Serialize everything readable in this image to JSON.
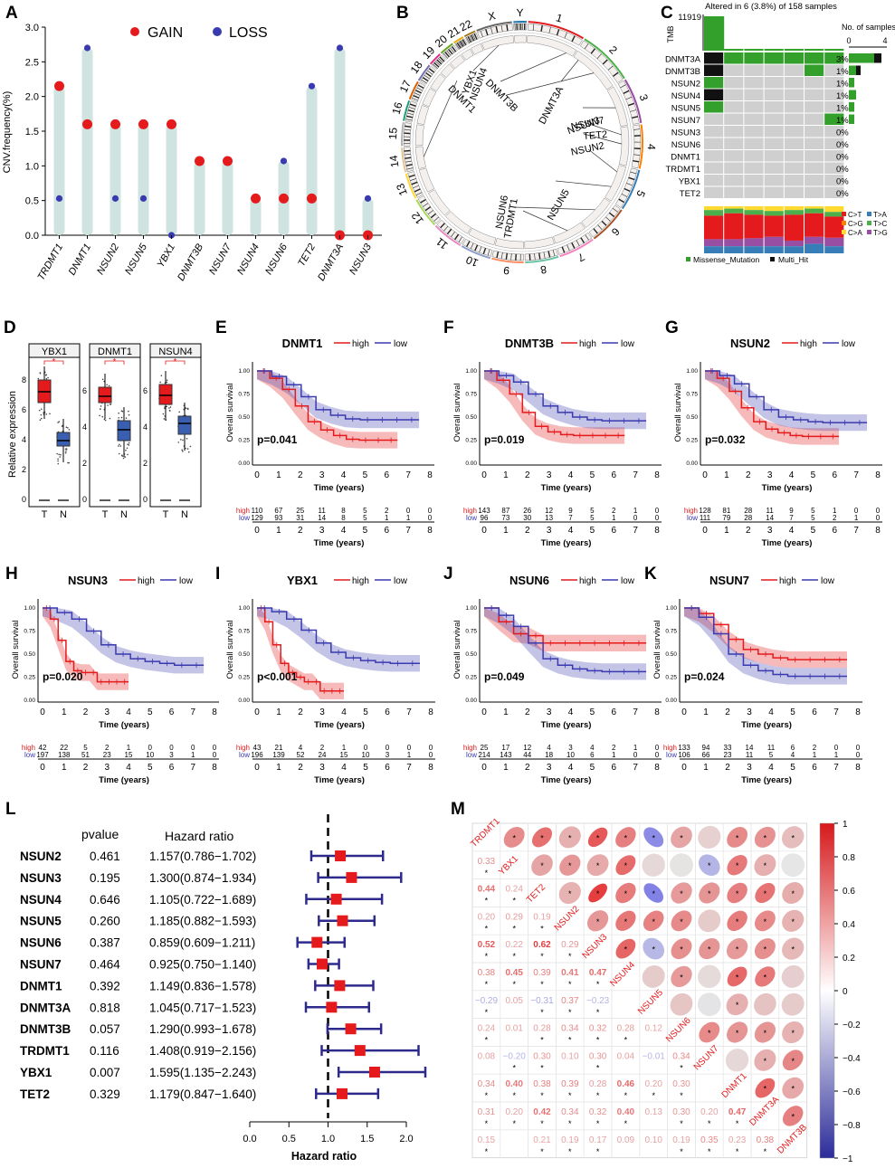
{
  "panels": {
    "A": {
      "letter": "A",
      "ylabel": "CNV.frequency(%)",
      "legend_gain": "GAIN",
      "legend_loss": "LOSS",
      "genes": [
        "TRDMT1",
        "DNMT1",
        "NSUN2",
        "NSUN5",
        "YBX1",
        "DNMT3B",
        "NSUN7",
        "NSUN4",
        "NSUN6",
        "TET2",
        "DNMT3A",
        "NSUN3"
      ],
      "gain": [
        2.15,
        1.6,
        1.6,
        1.6,
        1.6,
        1.07,
        1.07,
        0.53,
        0.53,
        0.53,
        0.0,
        0.0
      ],
      "loss": [
        0.53,
        2.7,
        0.53,
        0.53,
        0.0,
        1.07,
        1.07,
        0.53,
        1.07,
        2.15,
        2.7,
        0.53
      ],
      "yticks": [
        "0.0",
        "0.5",
        "1.0",
        "1.5",
        "2.0",
        "2.5",
        "3.0"
      ],
      "colors": {
        "gain": "#e41a1c",
        "loss": "#3a3ab0",
        "bar": "#cfe3e1"
      }
    },
    "B": {
      "letter": "B",
      "chromosomes": [
        "1",
        "2",
        "3",
        "4",
        "5",
        "6",
        "7",
        "8",
        "9",
        "10",
        "11",
        "12",
        "13",
        "14",
        "15",
        "16",
        "17",
        "18",
        "19",
        "20",
        "21",
        "22",
        "X",
        "Y"
      ],
      "gene_labels": [
        "YBX1",
        "NSUN4",
        "DNMT3A",
        "NSUN3",
        "NSUN7",
        "TET2",
        "NSUN2",
        "NSUN5",
        "NSUN6",
        "TRDMT1",
        "DNMT3B",
        "DNMT1"
      ]
    },
    "C": {
      "letter": "C",
      "title": "Altered in 6 (3.8%) of 158 samples",
      "tmb_label": "TMB",
      "tmb_max": "11919",
      "no_samples": "No. of samples",
      "axis_ticks": [
        "0",
        "4"
      ],
      "genes": [
        "DNMT3A",
        "DNMT3B",
        "NSUN2",
        "NSUN4",
        "NSUN5",
        "NSUN7",
        "NSUN3",
        "NSUN6",
        "DNMT1",
        "TRDMT1",
        "YBX1",
        "TET2"
      ],
      "pcts": [
        "3%",
        "1%",
        "1%",
        "1%",
        "1%",
        "1%",
        "0%",
        "0%",
        "0%",
        "0%",
        "0%",
        "0%"
      ],
      "legend_snv": [
        "C>T",
        "T>A",
        "C>G",
        "T>C",
        "C>A",
        "T>G"
      ],
      "legend_mut": [
        "Missense_Mutation",
        "Multi_Hit"
      ]
    },
    "D": {
      "letter": "D",
      "ylabel": "Relative expression",
      "genes": [
        "YBX1",
        "DNMT1",
        "NSUN4"
      ],
      "x_tn": [
        "T",
        "N"
      ],
      "star": "*"
    },
    "km": [
      {
        "letter": "E",
        "gene": "DNMT1",
        "p": "p=0.041",
        "high": [
          "110",
          "67",
          "25",
          "11",
          "8",
          "5",
          "2",
          "0",
          "0"
        ],
        "low": [
          "129",
          "93",
          "31",
          "14",
          "8",
          "5",
          "1",
          "1",
          "0"
        ]
      },
      {
        "letter": "F",
        "gene": "DNMT3B",
        "p": "p=0.019",
        "high": [
          "143",
          "87",
          "26",
          "12",
          "9",
          "5",
          "2",
          "1",
          "0"
        ],
        "low": [
          "96",
          "73",
          "30",
          "13",
          "7",
          "5",
          "1",
          "0",
          "0"
        ]
      },
      {
        "letter": "G",
        "gene": "NSUN2",
        "p": "p=0.032",
        "high": [
          "128",
          "81",
          "28",
          "11",
          "9",
          "5",
          "1",
          "0",
          "0"
        ],
        "low": [
          "111",
          "79",
          "28",
          "14",
          "7",
          "5",
          "2",
          "1",
          "0"
        ]
      },
      {
        "letter": "H",
        "gene": "NSUN3",
        "p": "p=0.020",
        "high": [
          "42",
          "22",
          "5",
          "2",
          "1",
          "0",
          "0",
          "0",
          "0"
        ],
        "low": [
          "197",
          "138",
          "51",
          "23",
          "15",
          "10",
          "3",
          "1",
          "0"
        ]
      },
      {
        "letter": "I",
        "gene": "YBX1",
        "p": "p<0.001",
        "high": [
          "43",
          "21",
          "4",
          "2",
          "1",
          "0",
          "0",
          "0",
          "0"
        ],
        "low": [
          "196",
          "139",
          "52",
          "24",
          "15",
          "10",
          "3",
          "1",
          "0"
        ]
      },
      {
        "letter": "J",
        "gene": "NSUN6",
        "p": "p=0.049",
        "high": [
          "25",
          "17",
          "12",
          "4",
          "3",
          "4",
          "2",
          "1",
          "0"
        ],
        "low": [
          "214",
          "143",
          "44",
          "18",
          "10",
          "6",
          "1",
          "0",
          "0"
        ]
      },
      {
        "letter": "K",
        "gene": "NSUN7",
        "p": "p=0.024",
        "high": [
          "133",
          "94",
          "33",
          "14",
          "11",
          "6",
          "2",
          "0",
          "0"
        ],
        "low": [
          "106",
          "66",
          "23",
          "11",
          "5",
          "4",
          "1",
          "1",
          "0"
        ]
      }
    ],
    "km_common": {
      "ylabel": "Overall survival",
      "xlabel": "Time (years)",
      "high": "high",
      "low": "low",
      "yticks": [
        "0.00",
        "0.25",
        "0.50",
        "0.75",
        "1.00"
      ],
      "xticks": [
        "0",
        "1",
        "2",
        "3",
        "4",
        "5",
        "6",
        "7",
        "8"
      ],
      "colors": {
        "high": "#e41a1c",
        "low": "#3a3ab0"
      }
    },
    "L": {
      "letter": "L",
      "pvalue_header": "pvalue",
      "hr_header": "Hazard ratio",
      "xlabel": "Hazard ratio",
      "xticks": [
        "0.0",
        "0.5",
        "1.0",
        "1.5",
        "2.0"
      ],
      "rows": [
        {
          "gene": "NSUN2",
          "p": "0.461",
          "hr_text": "1.157(0.786−1.702)",
          "hr": 1.157,
          "lo": 0.786,
          "hi": 1.702
        },
        {
          "gene": "NSUN3",
          "p": "0.195",
          "hr_text": "1.300(0.874−1.934)",
          "hr": 1.3,
          "lo": 0.874,
          "hi": 1.934
        },
        {
          "gene": "NSUN4",
          "p": "0.646",
          "hr_text": "1.105(0.722−1.689)",
          "hr": 1.105,
          "lo": 0.722,
          "hi": 1.689
        },
        {
          "gene": "NSUN5",
          "p": "0.260",
          "hr_text": "1.185(0.882−1.593)",
          "hr": 1.185,
          "lo": 0.882,
          "hi": 1.593
        },
        {
          "gene": "NSUN6",
          "p": "0.387",
          "hr_text": "0.859(0.609−1.211)",
          "hr": 0.859,
          "lo": 0.609,
          "hi": 1.211
        },
        {
          "gene": "NSUN7",
          "p": "0.464",
          "hr_text": "0.925(0.750−1.140)",
          "hr": 0.925,
          "lo": 0.75,
          "hi": 1.14
        },
        {
          "gene": "DNMT1",
          "p": "0.392",
          "hr_text": "1.149(0.836−1.578)",
          "hr": 1.149,
          "lo": 0.836,
          "hi": 1.578
        },
        {
          "gene": "DNMT3A",
          "p": "0.818",
          "hr_text": "1.045(0.717−1.523)",
          "hr": 1.045,
          "lo": 0.717,
          "hi": 1.523
        },
        {
          "gene": "DNMT3B",
          "p": "0.057",
          "hr_text": "1.290(0.993−1.678)",
          "hr": 1.29,
          "lo": 0.993,
          "hi": 1.678
        },
        {
          "gene": "TRDMT1",
          "p": "0.116",
          "hr_text": "1.408(0.919−2.156)",
          "hr": 1.408,
          "lo": 0.919,
          "hi": 2.156
        },
        {
          "gene": "YBX1",
          "p": "0.007",
          "hr_text": "1.595(1.135−2.243)",
          "hr": 1.595,
          "lo": 1.135,
          "hi": 2.243
        },
        {
          "gene": "TET2",
          "p": "0.329",
          "hr_text": "1.179(0.847−1.640)",
          "hr": 1.179,
          "lo": 0.847,
          "hi": 1.64
        }
      ]
    },
    "M": {
      "letter": "M",
      "genes": [
        "TRDMT1",
        "YBX1",
        "TET2",
        "NSUN2",
        "NSUN3",
        "NSUN4",
        "NSUN5",
        "NSUN6",
        "NSUN7",
        "DNMT1",
        "DNMT3A",
        "DNMT3B"
      ],
      "lower": [
        [],
        [
          "0.33"
        ],
        [
          "0.44",
          "0.24"
        ],
        [
          "0.20",
          "0.29",
          "0.19"
        ],
        [
          "0.52",
          "0.22",
          "0.62",
          "0.29"
        ],
        [
          "0.38",
          "0.45",
          "0.39",
          "0.41",
          "0.47"
        ],
        [
          "−0.29",
          "0.05",
          "−0.31",
          "0.37",
          "−0.23",
          ""
        ],
        [
          "0.24",
          "0.01",
          "0.28",
          "0.34",
          "0.32",
          "0.28",
          "0.12"
        ],
        [
          "0.08",
          "−0.20",
          "0.30",
          "0.10",
          "0.30",
          "0.04",
          "−0.01",
          "0.34"
        ],
        [
          "0.34",
          "0.40",
          "0.38",
          "0.39",
          "0.28",
          "0.46",
          "0.20",
          "0.30",
          ""
        ],
        [
          "0.31",
          "0.20",
          "0.42",
          "0.34",
          "0.32",
          "0.40",
          "0.13",
          "0.30",
          "0.20",
          "0.47"
        ],
        [
          "0.15",
          "",
          "0.21",
          "0.19",
          "0.17",
          "0.09",
          "0.10",
          "0.19",
          "0.35",
          "0.23",
          "0.38"
        ]
      ],
      "colorbar_ticks": [
        "1",
        "0.8",
        "0.6",
        "0.4",
        "0.2",
        "0",
        "−0.2",
        "−0.4",
        "−0.6",
        "−0.8",
        "−1"
      ]
    }
  }
}
